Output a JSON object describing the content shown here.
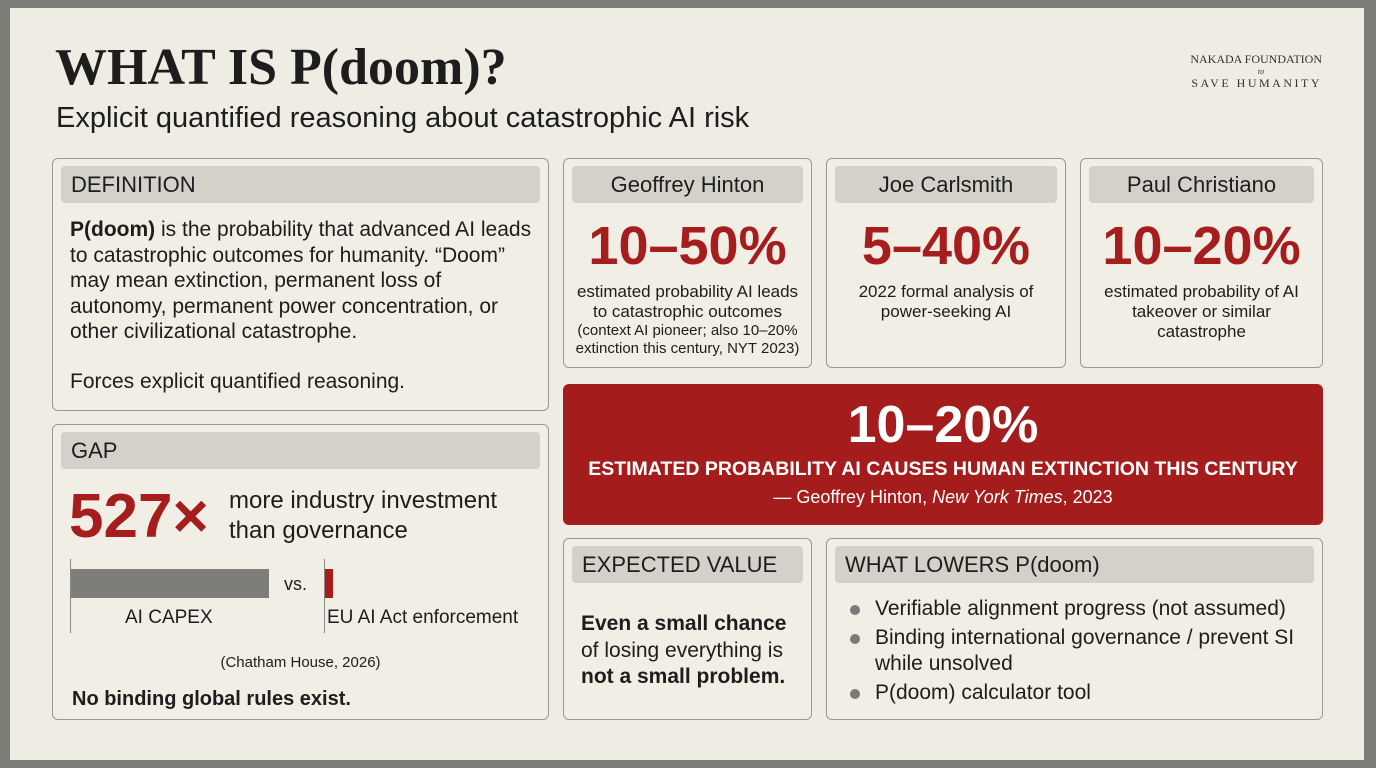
{
  "header": {
    "title": "WHAT IS P(doom)?",
    "subtitle": "Explicit quantified reasoning about catastrophic AI risk",
    "org_line1": "NAKADA FOUNDATION",
    "org_line2": "to",
    "org_line3": "SAVE HUMANITY"
  },
  "definition": {
    "heading": "DEFINITION",
    "term": "P(doom)",
    "text": " is the probability that advanced AI leads to catastrophic outcomes for humanity. “Doom” may mean extinction, permanent loss of autonomy, permanent power concentration, or other civilizational catastrophe.",
    "note": "Forces explicit quantified reasoning."
  },
  "gap": {
    "heading": "GAP",
    "multiplier": "527×",
    "multiplier_text": "more industry investment than governance",
    "bar_left_label": "AI CAPEX",
    "versus": "vs.",
    "bar_right_label": "EU AI Act enforcement",
    "source": "(Chatham House, 2026)",
    "conclusion": "No binding global rules exist."
  },
  "estimates": [
    {
      "name": "Geoffrey Hinton",
      "range": "10–50%",
      "description": "estimated probability AI leads to catastrophic outcomes",
      "note": "(context AI pioneer; also 10–20% extinction this century, NYT 2023)"
    },
    {
      "name": "Joe Carlsmith",
      "range": "5–40%",
      "description": "2022 formal analysis of power-seeking AI"
    },
    {
      "name": "Paul Christiano",
      "range": "10–20%",
      "description": "estimated probability of AI takeover or similar catastrophe"
    }
  ],
  "banner": {
    "range": "10–20%",
    "caption": "ESTIMATED PROBABILITY AI CAUSES HUMAN EXTINCTION THIS CENTURY",
    "source_prefix": "— Geoffrey Hinton, ",
    "source_publication": "New York Times",
    "source_suffix": ", 2023"
  },
  "expected_value": {
    "heading": "EXPECTED VALUE",
    "line1": "Even a small chance",
    "line2": "of losing everything is",
    "line3": "not a small problem."
  },
  "what_lowers": {
    "heading": "WHAT LOWERS P(doom)",
    "items": [
      "Verifiable alignment progress (not assumed)",
      "Binding international governance / prevent SI while unsolved",
      "P(doom) calculator tool"
    ]
  }
}
